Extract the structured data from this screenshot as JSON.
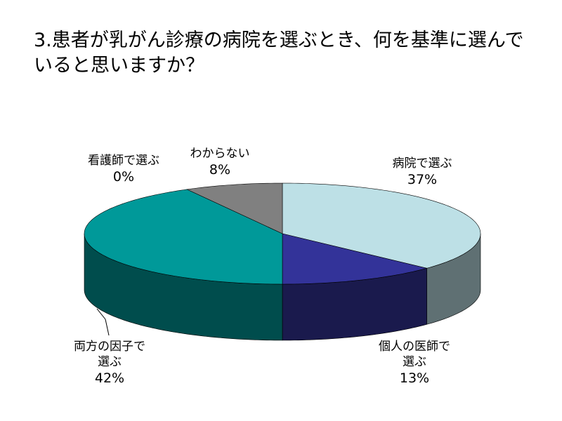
{
  "chart_data": {
    "type": "pie",
    "title": "3.患者が乳がん診療の病院を選ぶとき、何を基準に選んでいると思いますか？",
    "categories": [
      "病院で選ぶ",
      "個人の医師で選ぶ",
      "両方の因子で選ぶ",
      "看護師で選ぶ",
      "わからない"
    ],
    "values": [
      37,
      13,
      42,
      0,
      8
    ],
    "value_labels": [
      "37%",
      "13%",
      "42%",
      "0%",
      "8%"
    ],
    "colors": [
      "#bde0e6",
      "#333399",
      "#009999",
      "#ffffff",
      "#808080"
    ]
  }
}
